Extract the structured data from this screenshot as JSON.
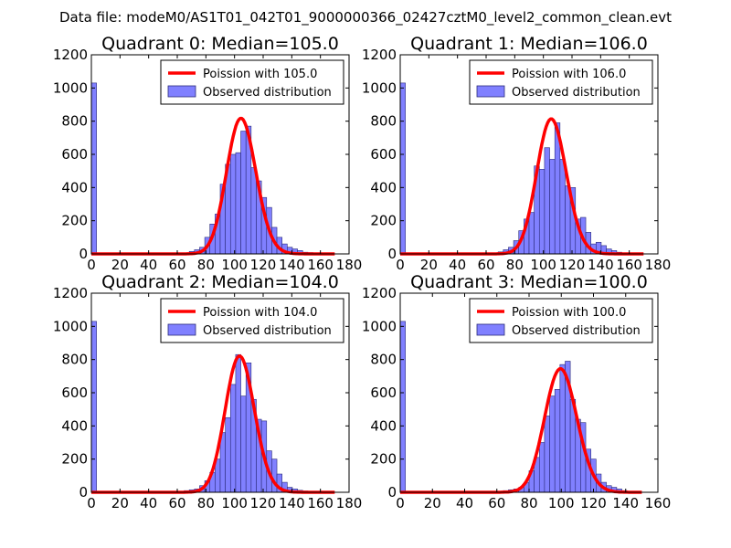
{
  "suptitle": "Data file: modeM0/AS1T01_042T01_9000000366_02427cztM0_level2_common_clean.evt",
  "colors": {
    "bar_fill": "#8080ff",
    "bar_edge": "#2a2a7a",
    "line": "#ff0000",
    "frame": "#000000"
  },
  "chart_data": [
    {
      "type": "bar",
      "title": "Quadrant 0: Median=105.0",
      "xlim": [
        0,
        180
      ],
      "ylim": [
        0,
        1200
      ],
      "xticks": [
        0,
        20,
        40,
        60,
        80,
        100,
        120,
        140,
        160,
        180
      ],
      "yticks": [
        0,
        200,
        400,
        600,
        800,
        1000,
        1200
      ],
      "xtick_labels": [
        "0",
        "20",
        "40",
        "60",
        "80",
        "100",
        "120",
        "140",
        "160",
        "180"
      ],
      "ytick_labels": [
        "0",
        "200",
        "400",
        "600",
        "800",
        "1000",
        "1200"
      ],
      "bin_width": 3.6,
      "bins": [
        [
          0,
          1030
        ],
        [
          68.4,
          15
        ],
        [
          72,
          25
        ],
        [
          75.6,
          40
        ],
        [
          79.2,
          100
        ],
        [
          82.8,
          180
        ],
        [
          86.4,
          240
        ],
        [
          90,
          420
        ],
        [
          93.6,
          540
        ],
        [
          97.2,
          600
        ],
        [
          100.8,
          610
        ],
        [
          104.4,
          740
        ],
        [
          108,
          770
        ],
        [
          111.6,
          520
        ],
        [
          115.2,
          440
        ],
        [
          118.8,
          340
        ],
        [
          122.4,
          280
        ],
        [
          126,
          160
        ],
        [
          129.6,
          100
        ],
        [
          133.2,
          60
        ],
        [
          136.8,
          40
        ],
        [
          140.4,
          30
        ],
        [
          144,
          20
        ],
        [
          147.6,
          10
        ],
        [
          151.2,
          8
        ],
        [
          154.8,
          5
        ],
        [
          158.4,
          3
        ]
      ],
      "poisson_mean": 105.0,
      "legend": [
        "Poission with 105.0",
        "Observed distribution"
      ]
    },
    {
      "type": "bar",
      "title": "Quadrant 1: Median=106.0",
      "xlim": [
        0,
        180
      ],
      "ylim": [
        0,
        1200
      ],
      "xticks": [
        0,
        20,
        40,
        60,
        80,
        100,
        120,
        140,
        160,
        180
      ],
      "yticks": [
        0,
        200,
        400,
        600,
        800,
        1000,
        1200
      ],
      "xtick_labels": [
        "0",
        "20",
        "40",
        "60",
        "80",
        "100",
        "120",
        "140",
        "160",
        "180"
      ],
      "ytick_labels": [
        "0",
        "200",
        "400",
        "600",
        "800",
        "1000",
        "1200"
      ],
      "bin_width": 3.6,
      "bins": [
        [
          0,
          1030
        ],
        [
          68.4,
          12
        ],
        [
          72,
          25
        ],
        [
          75.6,
          40
        ],
        [
          79.2,
          80
        ],
        [
          82.8,
          140
        ],
        [
          86.4,
          210
        ],
        [
          90,
          250
        ],
        [
          93.6,
          530
        ],
        [
          97.2,
          510
        ],
        [
          100.8,
          640
        ],
        [
          104.4,
          570
        ],
        [
          108,
          790
        ],
        [
          111.6,
          570
        ],
        [
          115.2,
          410
        ],
        [
          118.8,
          400
        ],
        [
          122.4,
          210
        ],
        [
          126,
          220
        ],
        [
          129.6,
          130
        ],
        [
          133.2,
          60
        ],
        [
          136.8,
          70
        ],
        [
          140.4,
          50
        ],
        [
          144,
          30
        ],
        [
          147.6,
          20
        ],
        [
          151.2,
          10
        ],
        [
          154.8,
          5
        ],
        [
          158.4,
          3
        ]
      ],
      "poisson_mean": 106.0,
      "legend": [
        "Poission with 106.0",
        "Observed distribution"
      ]
    },
    {
      "type": "bar",
      "title": "Quadrant 2: Median=104.0",
      "xlim": [
        0,
        180
      ],
      "ylim": [
        0,
        1200
      ],
      "xticks": [
        0,
        20,
        40,
        60,
        80,
        100,
        120,
        140,
        160,
        180
      ],
      "yticks": [
        0,
        200,
        400,
        600,
        800,
        1000,
        1200
      ],
      "xtick_labels": [
        "0",
        "20",
        "40",
        "60",
        "80",
        "100",
        "120",
        "140",
        "160",
        "180"
      ],
      "ytick_labels": [
        "0",
        "200",
        "400",
        "600",
        "800",
        "1000",
        "1200"
      ],
      "bin_width": 3.6,
      "bins": [
        [
          0,
          1030
        ],
        [
          64.8,
          10
        ],
        [
          68.4,
          15
        ],
        [
          72,
          20
        ],
        [
          75.6,
          40
        ],
        [
          79.2,
          70
        ],
        [
          82.8,
          120
        ],
        [
          86.4,
          200
        ],
        [
          90,
          360
        ],
        [
          93.6,
          450
        ],
        [
          97.2,
          650
        ],
        [
          100.8,
          830
        ],
        [
          104.4,
          580
        ],
        [
          108,
          780
        ],
        [
          111.6,
          560
        ],
        [
          115.2,
          440
        ],
        [
          118.8,
          430
        ],
        [
          122.4,
          250
        ],
        [
          126,
          200
        ],
        [
          129.6,
          110
        ],
        [
          133.2,
          60
        ],
        [
          136.8,
          30
        ],
        [
          140.4,
          20
        ],
        [
          144,
          12
        ],
        [
          147.6,
          8
        ],
        [
          151.2,
          5
        ],
        [
          154.8,
          3
        ]
      ],
      "poisson_mean": 104.0,
      "legend": [
        "Poission with 104.0",
        "Observed distribution"
      ]
    },
    {
      "type": "bar",
      "title": "Quadrant 3: Median=100.0",
      "xlim": [
        0,
        160
      ],
      "ylim": [
        0,
        1200
      ],
      "xticks": [
        0,
        20,
        40,
        60,
        80,
        100,
        120,
        140,
        160
      ],
      "yticks": [
        0,
        200,
        400,
        600,
        800,
        1000,
        1200
      ],
      "xtick_labels": [
        "0",
        "20",
        "40",
        "60",
        "80",
        "100",
        "120",
        "140",
        "160"
      ],
      "ytick_labels": [
        "0",
        "200",
        "400",
        "600",
        "800",
        "1000",
        "1200"
      ],
      "bin_width": 3.2,
      "bins": [
        [
          0,
          1030
        ],
        [
          64,
          10
        ],
        [
          67.2,
          15
        ],
        [
          70.4,
          20
        ],
        [
          73.6,
          30
        ],
        [
          76.8,
          60
        ],
        [
          80,
          130
        ],
        [
          83.2,
          210
        ],
        [
          86.4,
          300
        ],
        [
          89.6,
          460
        ],
        [
          92.8,
          580
        ],
        [
          96,
          620
        ],
        [
          99.2,
          770
        ],
        [
          102.4,
          790
        ],
        [
          105.6,
          560
        ],
        [
          108.8,
          440
        ],
        [
          112,
          420
        ],
        [
          115.2,
          260
        ],
        [
          118.4,
          200
        ],
        [
          121.6,
          110
        ],
        [
          124.8,
          60
        ],
        [
          128,
          40
        ],
        [
          131.2,
          30
        ],
        [
          134.4,
          20
        ],
        [
          137.6,
          10
        ],
        [
          140.8,
          5
        ]
      ],
      "poisson_mean": 100.0,
      "legend": [
        "Poission with 100.0",
        "Observed distribution"
      ]
    }
  ]
}
